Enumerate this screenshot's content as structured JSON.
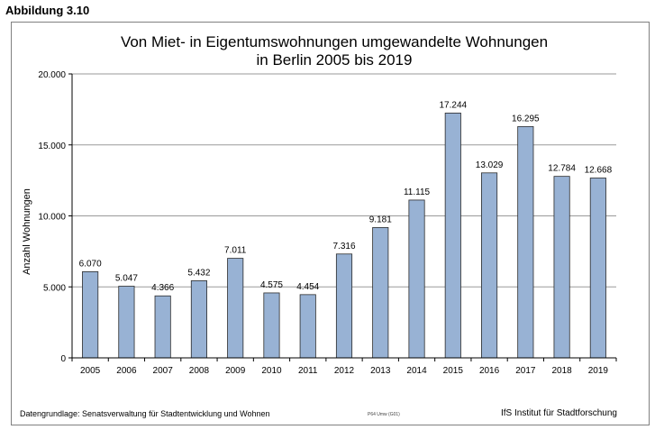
{
  "figure_label": "Abbildung 3.10",
  "footer": {
    "source": "Datengrundlage: Senatsverwaltung für Stadtentwicklung und Wohnen",
    "code": "P64 Umw (G01)",
    "institute": "IfS Institut für Stadtforschung"
  },
  "chart_data": {
    "type": "bar",
    "title": [
      "Von Miet- in Eigentumswohnungen umgewandelte Wohnungen",
      "in Berlin 2005 bis 2019"
    ],
    "xlabel": "",
    "ylabel": "Anzahl Wohnungen",
    "ylim": [
      0,
      20000
    ],
    "yticks": [
      0,
      5000,
      10000,
      15000,
      20000
    ],
    "ytick_labels": [
      "0",
      "5.000",
      "10.000",
      "15.000",
      "20.000"
    ],
    "grid": true,
    "bar_color": "#98b2d4",
    "categories": [
      "2005",
      "2006",
      "2007",
      "2008",
      "2009",
      "2010",
      "2011",
      "2012",
      "2013",
      "2014",
      "2015",
      "2016",
      "2017",
      "2018",
      "2019"
    ],
    "values": [
      6070,
      5047,
      4366,
      5432,
      7011,
      4575,
      4454,
      7316,
      9181,
      11115,
      17244,
      13029,
      16295,
      12784,
      12668
    ],
    "value_labels": [
      "6.070",
      "5.047",
      "4.366",
      "5.432",
      "7.011",
      "4.575",
      "4.454",
      "7.316",
      "9.181",
      "11.115",
      "17.244",
      "13.029",
      "16.295",
      "12.784",
      "12.668"
    ]
  }
}
